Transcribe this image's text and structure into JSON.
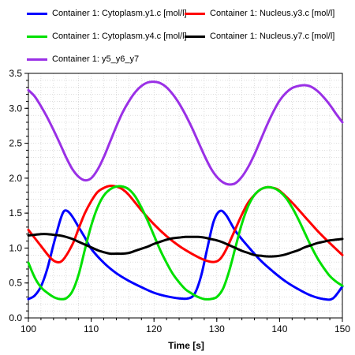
{
  "chart_data": {
    "type": "line",
    "title": "",
    "xlabel": "Time [s]",
    "ylabel": "",
    "xlim": [
      100,
      150
    ],
    "ylim": [
      0,
      3.5
    ],
    "xticks": [
      "100",
      "110",
      "120",
      "130",
      "140",
      "150"
    ],
    "yticks": [
      "0.0",
      "0.5",
      "1.0",
      "1.5",
      "2.0",
      "2.5",
      "3.0",
      "3.5"
    ],
    "grid": true,
    "legend_position": "top",
    "series": [
      {
        "name": "Container 1: Cytoplasm.y1.c [mol/l]",
        "color": "#0000ff",
        "x": [
          100,
          101,
          102,
          103,
          104,
          105,
          105.6,
          106.2,
          107,
          108,
          109,
          110,
          112,
          114,
          116,
          118,
          120,
          122,
          124,
          125.5,
          126.5,
          127.5,
          128.5,
          129.5,
          130.5,
          131.5,
          133,
          135,
          137,
          139,
          141,
          143,
          145,
          147,
          148.5,
          150
        ],
        "y": [
          0.27,
          0.32,
          0.45,
          0.7,
          1.05,
          1.38,
          1.52,
          1.53,
          1.45,
          1.3,
          1.15,
          0.99,
          0.79,
          0.64,
          0.53,
          0.44,
          0.36,
          0.31,
          0.28,
          0.28,
          0.35,
          0.6,
          1.0,
          1.38,
          1.53,
          1.47,
          1.24,
          1.02,
          0.82,
          0.66,
          0.52,
          0.41,
          0.32,
          0.27,
          0.28,
          0.45
        ]
      },
      {
        "name": "Container 1: Nucleus.y3.c [mol/l]",
        "color": "#ff0000",
        "x": [
          100,
          102,
          103.5,
          104.5,
          105.5,
          107,
          108,
          109,
          110,
          111,
          112,
          113,
          114,
          115,
          116,
          118,
          120,
          122,
          124,
          126,
          128,
          129.5,
          130.5,
          131.5,
          133,
          134,
          135,
          136,
          137,
          138,
          139,
          140,
          142,
          144,
          146,
          148,
          150
        ],
        "y": [
          1.26,
          1.03,
          0.86,
          0.8,
          0.83,
          1.05,
          1.28,
          1.5,
          1.67,
          1.8,
          1.86,
          1.89,
          1.88,
          1.84,
          1.76,
          1.54,
          1.34,
          1.17,
          1.03,
          0.92,
          0.83,
          0.8,
          0.84,
          0.98,
          1.28,
          1.48,
          1.65,
          1.76,
          1.84,
          1.87,
          1.86,
          1.82,
          1.65,
          1.45,
          1.25,
          1.07,
          0.9
        ]
      },
      {
        "name": "Container 1: Cytoplasm.y4.c [mol/l]",
        "color": "#00e000",
        "x": [
          100,
          101,
          102,
          103,
          104,
          105,
          106,
          107,
          108,
          109,
          110,
          111,
          112,
          113,
          114,
          115,
          116,
          117,
          118,
          119,
          120,
          121,
          122,
          123,
          124,
          125,
          126,
          127,
          128,
          129,
          130,
          131,
          132,
          133,
          134,
          135,
          136,
          137,
          138,
          139,
          140,
          141,
          142,
          143,
          144,
          145,
          146,
          147,
          148,
          149,
          150
        ],
        "y": [
          0.79,
          0.58,
          0.44,
          0.36,
          0.3,
          0.27,
          0.28,
          0.38,
          0.62,
          0.98,
          1.32,
          1.58,
          1.75,
          1.84,
          1.88,
          1.88,
          1.84,
          1.74,
          1.58,
          1.39,
          1.18,
          0.97,
          0.79,
          0.63,
          0.51,
          0.41,
          0.35,
          0.3,
          0.27,
          0.27,
          0.3,
          0.42,
          0.68,
          1.02,
          1.35,
          1.6,
          1.76,
          1.84,
          1.87,
          1.86,
          1.81,
          1.72,
          1.58,
          1.41,
          1.22,
          1.03,
          0.86,
          0.72,
          0.6,
          0.52,
          0.46
        ]
      },
      {
        "name": "Container 1: Nucleus.y7.c [mol/l]",
        "color": "#000000",
        "x": [
          100,
          101,
          102,
          103,
          104,
          105,
          106,
          107,
          108,
          109,
          110,
          111,
          112,
          113,
          114,
          115,
          116,
          117,
          118,
          119,
          120,
          121,
          122,
          123,
          124,
          125,
          126,
          127,
          128,
          129,
          130,
          131,
          132,
          133,
          134,
          135,
          136,
          137,
          138,
          139,
          140,
          141,
          142,
          143,
          144,
          145,
          146,
          147,
          148,
          149,
          150
        ],
        "y": [
          1.18,
          1.19,
          1.2,
          1.2,
          1.19,
          1.18,
          1.16,
          1.13,
          1.09,
          1.05,
          1.01,
          0.97,
          0.94,
          0.92,
          0.92,
          0.92,
          0.93,
          0.96,
          0.99,
          1.02,
          1.06,
          1.09,
          1.12,
          1.14,
          1.15,
          1.16,
          1.16,
          1.16,
          1.15,
          1.13,
          1.11,
          1.08,
          1.04,
          1.0,
          0.96,
          0.93,
          0.9,
          0.89,
          0.88,
          0.88,
          0.89,
          0.91,
          0.94,
          0.97,
          1.01,
          1.04,
          1.07,
          1.09,
          1.11,
          1.12,
          1.13
        ]
      },
      {
        "name": "Container 1: y5_y6_y7",
        "color": "#9a30e6",
        "x": [
          100,
          101,
          102,
          103,
          104,
          105,
          106,
          107,
          108,
          109,
          110,
          111,
          112,
          113,
          114,
          115,
          116,
          117,
          118,
          119,
          120,
          121,
          122,
          123,
          124,
          125,
          126,
          127,
          128,
          129,
          130,
          131,
          132,
          133,
          134,
          135,
          136,
          137,
          138,
          139,
          140,
          141,
          142,
          143,
          144,
          145,
          146,
          147,
          148,
          149,
          150
        ],
        "y": [
          3.26,
          3.17,
          3.03,
          2.87,
          2.69,
          2.5,
          2.3,
          2.13,
          2.02,
          1.97,
          2.0,
          2.12,
          2.3,
          2.52,
          2.74,
          2.94,
          3.1,
          3.23,
          3.32,
          3.37,
          3.38,
          3.36,
          3.3,
          3.2,
          3.07,
          2.91,
          2.73,
          2.53,
          2.33,
          2.15,
          2.02,
          1.94,
          1.91,
          1.93,
          2.02,
          2.16,
          2.34,
          2.55,
          2.76,
          2.95,
          3.11,
          3.22,
          3.29,
          3.32,
          3.33,
          3.31,
          3.25,
          3.16,
          3.05,
          2.92,
          2.8
        ]
      }
    ]
  }
}
